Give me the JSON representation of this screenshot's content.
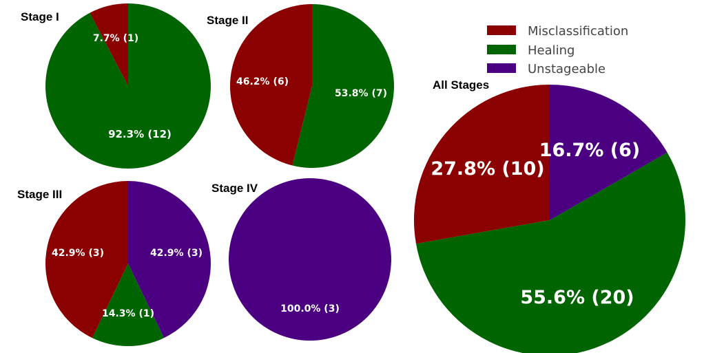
{
  "colors": {
    "Misclassification": "#8b0000",
    "Healing": "#006400",
    "Unstageable": "#4b0082"
  },
  "legend": {
    "items": [
      {
        "label": "Misclassification",
        "color": "#8b0000"
      },
      {
        "label": "Healing",
        "color": "#006400"
      },
      {
        "label": "Unstageable",
        "color": "#4b0082"
      }
    ]
  },
  "chart_data": [
    {
      "type": "pie",
      "title": "Stage I",
      "labels": [
        "Misclassification",
        "Healing"
      ],
      "values": [
        1,
        12
      ],
      "percentages": [
        7.7,
        92.3
      ],
      "slice_labels": [
        "7.7% (1)",
        "92.3% (12)"
      ]
    },
    {
      "type": "pie",
      "title": "Stage II",
      "labels": [
        "Misclassification",
        "Healing"
      ],
      "values": [
        6,
        7
      ],
      "percentages": [
        46.2,
        53.8
      ],
      "slice_labels": [
        "46.2% (6)",
        "53.8% (7)"
      ]
    },
    {
      "type": "pie",
      "title": "Stage III",
      "labels": [
        "Misclassification",
        "Healing",
        "Unstageable"
      ],
      "values": [
        3,
        1,
        3
      ],
      "percentages": [
        42.9,
        14.3,
        42.9
      ],
      "slice_labels": [
        "42.9% (3)",
        "14.3% (1)",
        "42.9% (3)"
      ]
    },
    {
      "type": "pie",
      "title": "Stage IV",
      "labels": [
        "Unstageable"
      ],
      "values": [
        3
      ],
      "percentages": [
        100.0
      ],
      "slice_labels": [
        "100.0% (3)"
      ]
    },
    {
      "type": "pie",
      "title": "All Stages",
      "labels": [
        "Misclassification",
        "Healing",
        "Unstageable"
      ],
      "values": [
        10,
        20,
        6
      ],
      "percentages": [
        27.8,
        55.6,
        16.7
      ],
      "slice_labels": [
        "27.8% (10)",
        "55.6% (20)",
        "16.7% (6)"
      ],
      "legend_position": "upper right"
    }
  ]
}
